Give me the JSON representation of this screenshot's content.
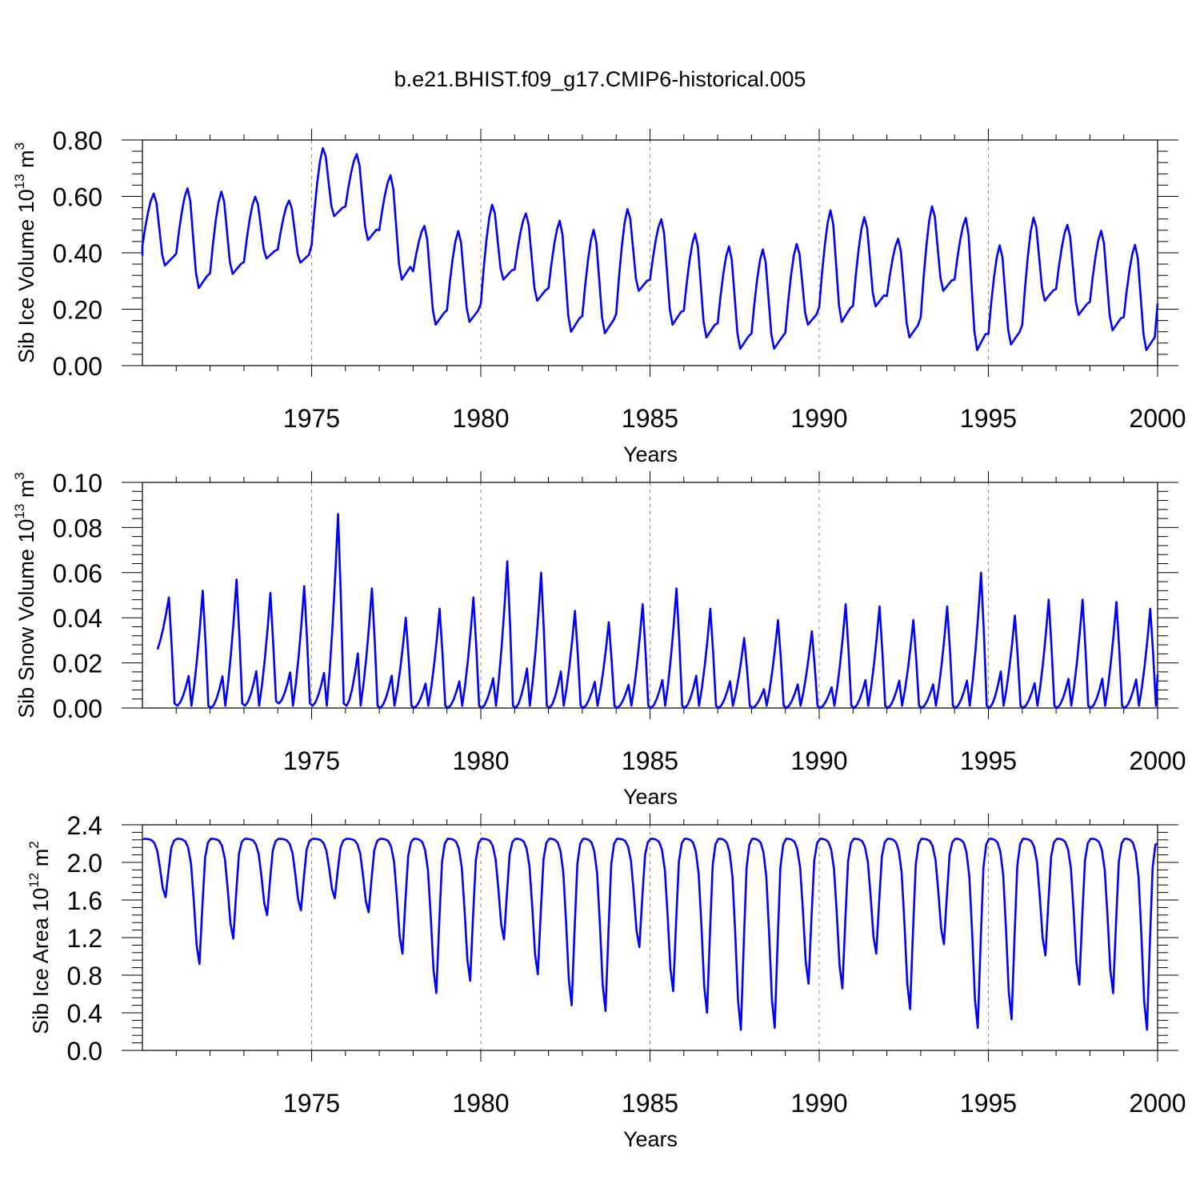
{
  "figure": {
    "title": "b.e21.BHIST.f09_g17.CMIP6-historical.005"
  },
  "chart_data": [
    {
      "type": "line",
      "ylabel": {
        "main": "Sib Ice Volume 10",
        "exp": "13",
        "unit": " m",
        "unit_exp": "3"
      },
      "xlabel": "Years",
      "xlim": [
        1970,
        2000
      ],
      "ylim": [
        0.0,
        0.8
      ],
      "yticks": [
        0.0,
        0.2,
        0.4,
        0.6,
        0.8
      ],
      "ytick_labels": [
        "0.00",
        "0.20",
        "0.40",
        "0.60",
        "0.80"
      ],
      "xticks": [
        1975,
        1980,
        1985,
        1990,
        1995,
        2000
      ],
      "xtick_labels": [
        "1975",
        "1980",
        "1985",
        "1990",
        "1995",
        "2000"
      ],
      "grid_x": [
        1975,
        1980,
        1985,
        1990,
        1995
      ],
      "line_color": "#0000ff",
      "yearly_maxima": [
        0.615,
        0.635,
        0.625,
        0.605,
        0.59,
        0.78,
        0.755,
        0.68,
        0.5,
        0.485,
        0.58,
        0.545,
        0.52,
        0.49,
        0.565,
        0.525,
        0.475,
        0.43,
        0.42,
        0.44,
        0.56,
        0.535,
        0.455,
        0.575,
        0.53,
        0.435,
        0.535,
        0.505,
        0.485,
        0.435
      ],
      "yearly_minima": [
        0.355,
        0.275,
        0.325,
        0.38,
        0.365,
        0.53,
        0.445,
        0.305,
        0.145,
        0.155,
        0.305,
        0.23,
        0.12,
        0.115,
        0.265,
        0.145,
        0.1,
        0.06,
        0.06,
        0.145,
        0.155,
        0.21,
        0.1,
        0.265,
        0.055,
        0.075,
        0.23,
        0.18,
        0.125,
        0.055
      ],
      "end_value": 0.22
    },
    {
      "type": "line",
      "ylabel": {
        "main": "Sib Snow Volume 10",
        "exp": "13",
        "unit": " m",
        "unit_exp": "3"
      },
      "xlabel": "Years",
      "xlim": [
        1970,
        2000
      ],
      "ylim": [
        0.0,
        0.1
      ],
      "yticks": [
        0.0,
        0.02,
        0.04,
        0.06,
        0.08,
        0.1
      ],
      "ytick_labels": [
        "0.00",
        "0.02",
        "0.04",
        "0.06",
        "0.08",
        "0.10"
      ],
      "xticks": [
        1975,
        1980,
        1985,
        1990,
        1995,
        2000
      ],
      "xtick_labels": [
        "1975",
        "1980",
        "1985",
        "1990",
        "1995",
        "2000"
      ],
      "grid_x": [
        1975,
        1980,
        1985,
        1990,
        1995
      ],
      "line_color": "#0000ff",
      "start_value": 0.026,
      "yearly_maxima": [
        0.049,
        0.052,
        0.057,
        0.051,
        0.054,
        0.086,
        0.053,
        0.04,
        0.044,
        0.049,
        0.065,
        0.06,
        0.043,
        0.038,
        0.046,
        0.053,
        0.044,
        0.031,
        0.039,
        0.034,
        0.046,
        0.045,
        0.039,
        0.045,
        0.06,
        0.041,
        0.048,
        0.048,
        0.047,
        0.044
      ],
      "yearly_minima": [
        0.001,
        0.0,
        0.001,
        0.002,
        0.001,
        0.001,
        0.0,
        0.0,
        0.0,
        0.0,
        0.0,
        0.0,
        0.0,
        0.0,
        0.0,
        0.0,
        0.0,
        0.0,
        0.0,
        0.0,
        0.0,
        0.0,
        0.0,
        0.0,
        0.0,
        0.0,
        0.0,
        0.0,
        0.0,
        0.0
      ],
      "end_value": 0.015
    },
    {
      "type": "line",
      "ylabel": {
        "main": "Sib Ice Area 10",
        "exp": "12",
        "unit": " m",
        "unit_exp": "2"
      },
      "xlabel": "Years",
      "xlim": [
        1970,
        2000
      ],
      "ylim": [
        0.0,
        2.4
      ],
      "yticks": [
        0.0,
        0.4,
        0.8,
        1.2,
        1.6,
        2.0,
        2.4
      ],
      "ytick_labels": [
        "0.0",
        "0.4",
        "0.8",
        "1.2",
        "1.6",
        "2.0",
        "2.4"
      ],
      "xticks": [
        1975,
        1980,
        1985,
        1990,
        1995,
        2000
      ],
      "xtick_labels": [
        "1975",
        "1980",
        "1985",
        "1990",
        "1995",
        "2000"
      ],
      "grid_x": [
        1975,
        1980,
        1985,
        1990,
        1995
      ],
      "line_color": "#0000ff",
      "winter_value": 2.25,
      "yearly_minima": [
        1.63,
        0.92,
        1.19,
        1.44,
        1.49,
        1.62,
        1.47,
        1.03,
        0.61,
        0.74,
        1.18,
        0.81,
        0.48,
        0.42,
        1.1,
        0.63,
        0.4,
        0.22,
        0.24,
        0.71,
        0.66,
        1.03,
        0.44,
        1.13,
        0.24,
        0.33,
        1.01,
        0.7,
        0.61,
        0.22
      ],
      "end_value": 2.2
    }
  ]
}
